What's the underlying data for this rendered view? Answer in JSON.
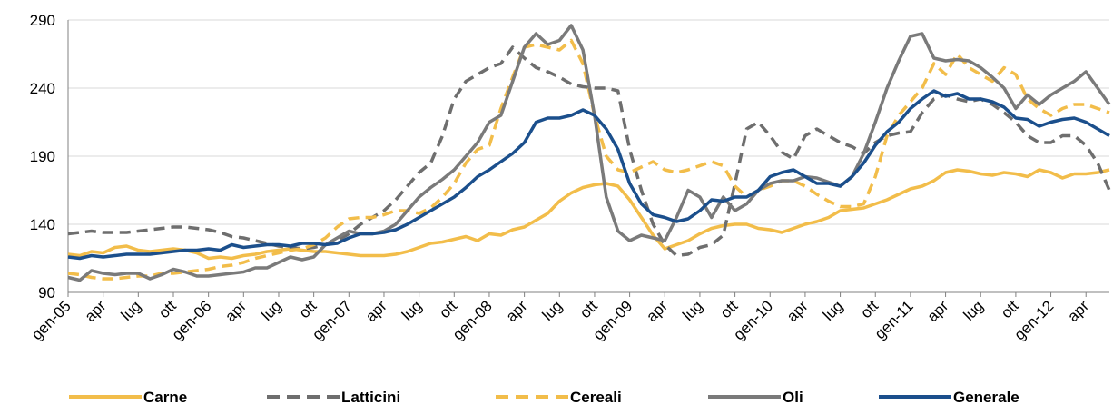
{
  "chart_data": {
    "type": "line",
    "categories": [
      "gen-05",
      null,
      null,
      "apr",
      null,
      null,
      "lug",
      null,
      null,
      "ott",
      null,
      null,
      "gen-06",
      null,
      null,
      "apr",
      null,
      null,
      "lug",
      null,
      null,
      "ott",
      null,
      null,
      "gen-07",
      null,
      null,
      "apr",
      null,
      null,
      "lug",
      null,
      null,
      "ott",
      null,
      null,
      "gen-08",
      null,
      null,
      "apr",
      null,
      null,
      "lug",
      null,
      null,
      "ott",
      null,
      null,
      "gen-09",
      null,
      null,
      "apr",
      null,
      null,
      "lug",
      null,
      null,
      "ott",
      null,
      null,
      "gen-10",
      null,
      null,
      "apr",
      null,
      null,
      "lug",
      null,
      null,
      "ott",
      null,
      null,
      "gen-11",
      null,
      null,
      "apr",
      null,
      null,
      "lug",
      null,
      null,
      "ott",
      null,
      null,
      "gen-12",
      null,
      null,
      "apr",
      null,
      null
    ],
    "ylim": [
      90,
      290
    ],
    "yticks": [
      90,
      140,
      190,
      240,
      290
    ],
    "grid": true,
    "series": [
      {
        "name": "Carne",
        "color": "#f2bd4a",
        "dashed": false,
        "values": [
          118,
          117,
          120,
          119,
          123,
          124,
          121,
          120,
          121,
          122,
          121,
          119,
          115,
          116,
          115,
          117,
          118,
          120,
          121,
          122,
          121,
          120,
          120,
          119,
          118,
          117,
          117,
          117,
          118,
          120,
          123,
          126,
          127,
          129,
          131,
          128,
          133,
          132,
          136,
          138,
          143,
          148,
          157,
          163,
          167,
          169,
          170,
          168,
          158,
          145,
          132,
          122,
          125,
          128,
          133,
          137,
          139,
          140,
          140,
          137,
          136,
          134,
          137,
          140,
          142,
          145,
          150,
          151,
          152,
          155,
          158,
          162,
          166,
          168,
          172,
          178,
          180,
          179,
          177,
          176,
          178,
          177,
          175,
          180,
          178,
          174,
          177,
          177,
          178,
          180
        ]
      },
      {
        "name": "Latticini",
        "color": "#6e6e6e",
        "dashed": true,
        "values": [
          133,
          134,
          135,
          134,
          134,
          134,
          135,
          136,
          137,
          138,
          138,
          137,
          136,
          134,
          131,
          130,
          128,
          126,
          124,
          123,
          122,
          123,
          125,
          128,
          133,
          140,
          145,
          150,
          158,
          168,
          178,
          185,
          205,
          232,
          245,
          250,
          255,
          258,
          270,
          262,
          255,
          252,
          248,
          243,
          241,
          240,
          240,
          238,
          195,
          165,
          140,
          125,
          117,
          118,
          123,
          125,
          132,
          170,
          210,
          215,
          205,
          193,
          188,
          205,
          210,
          205,
          200,
          197,
          192,
          200,
          205,
          207,
          208,
          222,
          232,
          235,
          232,
          230,
          232,
          228,
          222,
          215,
          205,
          200,
          200,
          205,
          205,
          198,
          185,
          165
        ]
      },
      {
        "name": "Cereali",
        "color": "#f2bd4a",
        "dashed": true,
        "values": [
          104,
          103,
          101,
          100,
          100,
          101,
          102,
          102,
          104,
          104,
          105,
          106,
          107,
          109,
          110,
          112,
          115,
          117,
          119,
          121,
          122,
          125,
          130,
          138,
          144,
          145,
          145,
          147,
          150,
          150,
          148,
          152,
          160,
          170,
          185,
          195,
          198,
          225,
          248,
          270,
          272,
          270,
          268,
          275,
          258,
          220,
          190,
          180,
          178,
          182,
          186,
          180,
          178,
          180,
          183,
          186,
          183,
          168,
          160,
          165,
          168,
          172,
          172,
          168,
          162,
          157,
          153,
          153,
          155,
          175,
          205,
          220,
          230,
          240,
          258,
          250,
          265,
          255,
          250,
          245,
          255,
          250,
          232,
          225,
          220,
          225,
          228,
          228,
          225,
          222
        ]
      },
      {
        "name": "Oli",
        "color": "#7a7a7a",
        "dashed": false,
        "values": [
          101,
          99,
          106,
          104,
          103,
          104,
          104,
          100,
          103,
          107,
          105,
          102,
          102,
          103,
          104,
          105,
          108,
          108,
          112,
          116,
          114,
          116,
          125,
          130,
          135,
          133,
          133,
          135,
          140,
          150,
          160,
          167,
          173,
          180,
          190,
          200,
          215,
          220,
          245,
          270,
          280,
          272,
          275,
          286,
          268,
          220,
          160,
          135,
          128,
          132,
          130,
          128,
          145,
          165,
          160,
          145,
          160,
          150,
          155,
          165,
          170,
          172,
          172,
          175,
          174,
          171,
          168,
          175,
          192,
          215,
          240,
          260,
          278,
          280,
          262,
          260,
          261,
          260,
          255,
          248,
          240,
          225,
          235,
          228,
          235,
          240,
          245,
          252,
          240,
          228
        ]
      },
      {
        "name": "Generale",
        "color": "#1b4f8c",
        "dashed": false,
        "values": [
          116,
          115,
          117,
          116,
          117,
          118,
          118,
          118,
          119,
          120,
          121,
          121,
          122,
          121,
          125,
          123,
          124,
          125,
          125,
          124,
          126,
          126,
          125,
          126,
          130,
          133,
          133,
          134,
          136,
          140,
          145,
          150,
          155,
          160,
          167,
          175,
          180,
          186,
          192,
          200,
          215,
          218,
          218,
          220,
          224,
          220,
          210,
          195,
          170,
          155,
          147,
          145,
          142,
          144,
          150,
          158,
          157,
          160,
          160,
          165,
          175,
          178,
          180,
          175,
          170,
          170,
          168,
          175,
          185,
          198,
          208,
          215,
          225,
          232,
          238,
          234,
          236,
          232,
          232,
          230,
          226,
          218,
          217,
          212,
          215,
          217,
          218,
          215,
          210,
          205
        ]
      }
    ]
  }
}
